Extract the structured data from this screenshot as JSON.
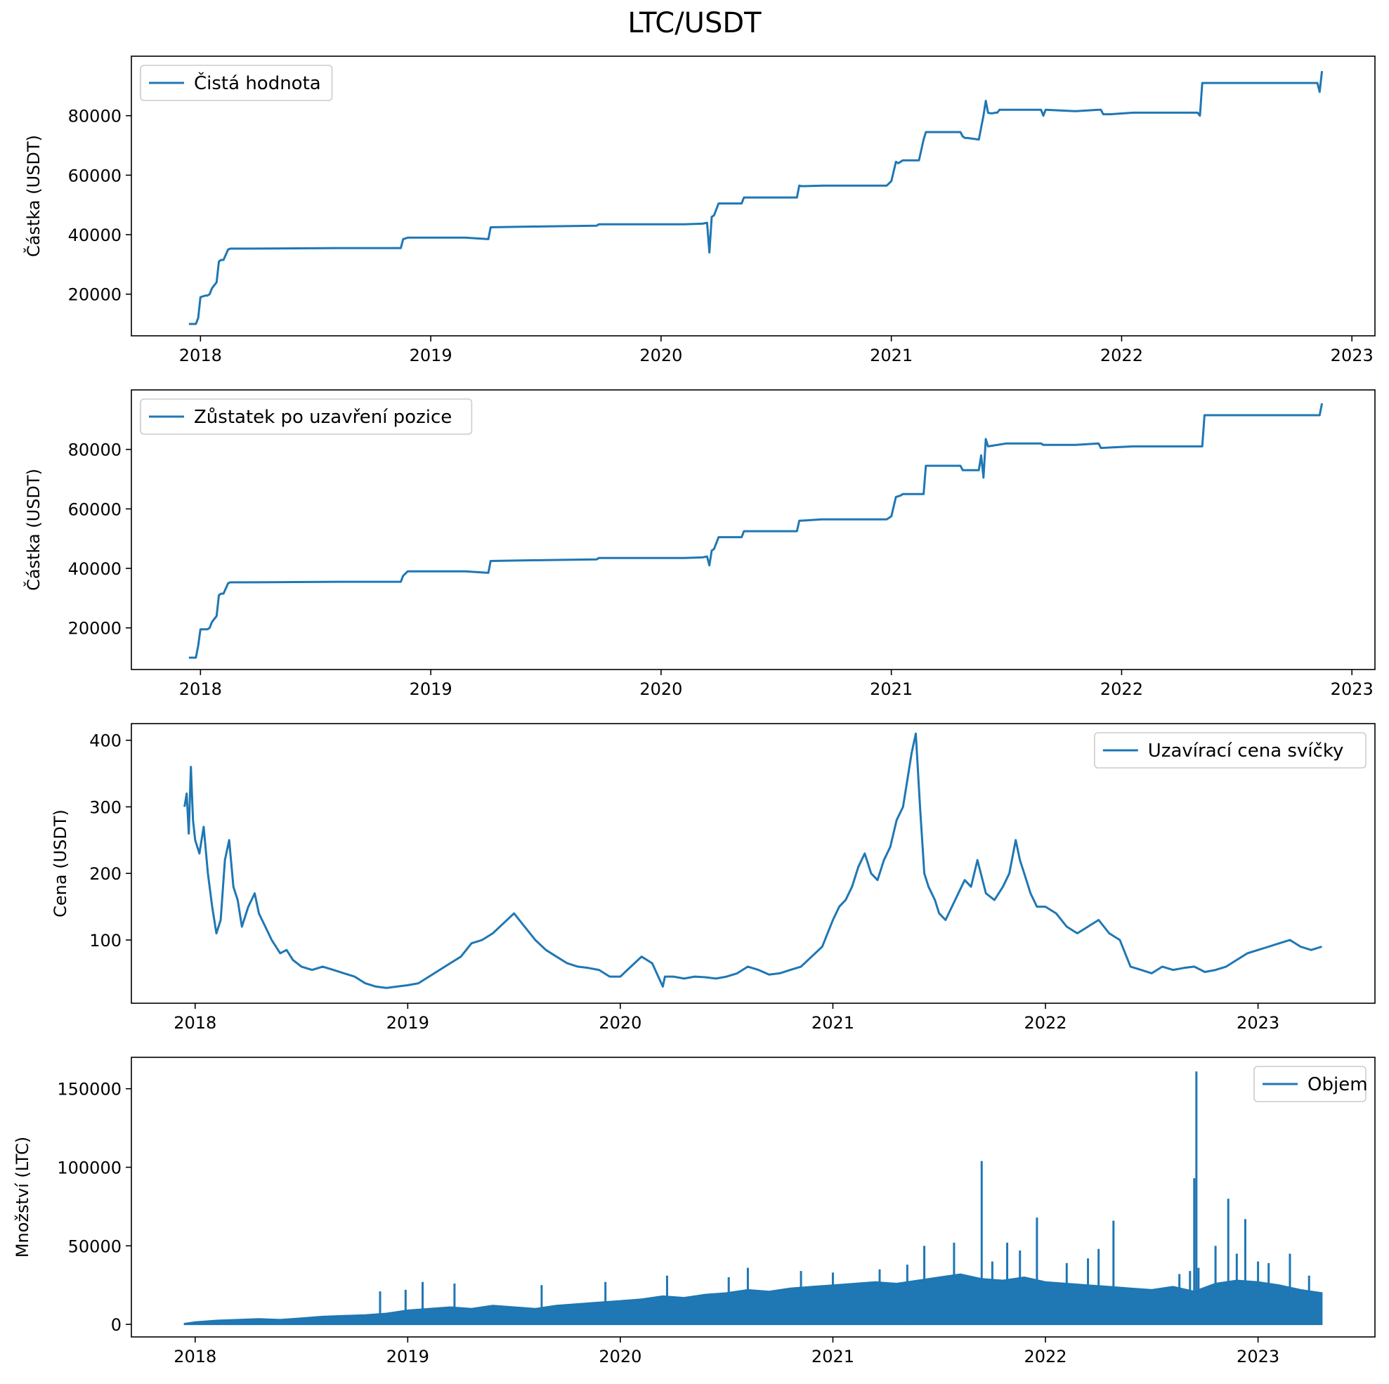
{
  "figure": {
    "title": "LTC/USDT"
  },
  "colors": {
    "series": "#1f77b4"
  },
  "chart_data": [
    {
      "type": "line",
      "name": "net-value",
      "ylabel": "Částka (USDT)",
      "legend": {
        "label": "Čistá hodnota",
        "placement": "top-left"
      },
      "xlim": [
        2017.7,
        2023.1
      ],
      "ylim": [
        6000,
        100000
      ],
      "xticks": [
        2018,
        2019,
        2020,
        2021,
        2022,
        2023
      ],
      "yticks": [
        20000,
        40000,
        60000,
        80000
      ],
      "x": [
        2017.95,
        2017.98,
        2017.99,
        2018.0,
        2018.02,
        2018.03,
        2018.04,
        2018.05,
        2018.07,
        2018.08,
        2018.09,
        2018.1,
        2018.12,
        2018.13,
        2018.2,
        2018.6,
        2018.87,
        2018.88,
        2018.9,
        2019.15,
        2019.25,
        2019.26,
        2019.5,
        2019.72,
        2019.73,
        2020.1,
        2020.18,
        2020.2,
        2020.21,
        2020.22,
        2020.23,
        2020.25,
        2020.27,
        2020.35,
        2020.36,
        2020.4,
        2020.59,
        2020.6,
        2020.61,
        2020.7,
        2020.9,
        2020.98,
        2021.0,
        2021.02,
        2021.03,
        2021.04,
        2021.05,
        2021.12,
        2021.14,
        2021.15,
        2021.17,
        2021.3,
        2021.31,
        2021.32,
        2021.33,
        2021.38,
        2021.4,
        2021.41,
        2021.42,
        2021.43,
        2021.44,
        2021.45,
        2021.46,
        2021.47,
        2021.5,
        2021.65,
        2021.66,
        2021.67,
        2021.8,
        2021.9,
        2021.91,
        2021.92,
        2021.95,
        2022.05,
        2022.33,
        2022.34,
        2022.35,
        2022.36,
        2022.8,
        2022.85,
        2022.86,
        2022.87
      ],
      "y": [
        10000,
        10000,
        12000,
        19000,
        19500,
        19500,
        20000,
        22000,
        24000,
        31000,
        31500,
        31500,
        35000,
        35300,
        35300,
        35500,
        35500,
        38500,
        39000,
        39000,
        38500,
        42500,
        42800,
        43000,
        43500,
        43500,
        43700,
        44000,
        34000,
        46000,
        46500,
        50500,
        50500,
        50500,
        52500,
        52500,
        52500,
        56500,
        56300,
        56500,
        56500,
        56500,
        58000,
        64500,
        64000,
        64500,
        65000,
        65000,
        72000,
        74500,
        74500,
        74500,
        73000,
        72500,
        72500,
        72000,
        80000,
        85000,
        81000,
        80800,
        80800,
        81000,
        81000,
        82000,
        82000,
        82000,
        80000,
        82000,
        81500,
        82000,
        82000,
        80500,
        80500,
        81000,
        81000,
        80000,
        91000,
        91000,
        91000,
        91000,
        88000,
        95000
      ]
    },
    {
      "type": "line",
      "name": "closed-balance",
      "ylabel": "Částka (USDT)",
      "legend": {
        "label": "Zůstatek po uzavření pozice",
        "placement": "top-left"
      },
      "xlim": [
        2017.7,
        2023.1
      ],
      "ylim": [
        6000,
        100000
      ],
      "xticks": [
        2018,
        2019,
        2020,
        2021,
        2022,
        2023
      ],
      "yticks": [
        20000,
        40000,
        60000,
        80000
      ],
      "x": [
        2017.95,
        2017.98,
        2017.99,
        2018.0,
        2018.02,
        2018.03,
        2018.04,
        2018.05,
        2018.07,
        2018.08,
        2018.09,
        2018.1,
        2018.12,
        2018.13,
        2018.2,
        2018.6,
        2018.87,
        2018.88,
        2018.9,
        2019.15,
        2019.25,
        2019.26,
        2019.5,
        2019.72,
        2019.73,
        2020.1,
        2020.18,
        2020.2,
        2020.21,
        2020.22,
        2020.23,
        2020.25,
        2020.27,
        2020.35,
        2020.36,
        2020.4,
        2020.59,
        2020.6,
        2020.7,
        2020.98,
        2021.0,
        2021.02,
        2021.04,
        2021.05,
        2021.14,
        2021.15,
        2021.3,
        2021.31,
        2021.38,
        2021.39,
        2021.4,
        2021.41,
        2021.42,
        2021.5,
        2021.65,
        2021.66,
        2021.8,
        2021.9,
        2021.91,
        2022.05,
        2022.35,
        2022.36,
        2022.86,
        2022.87
      ],
      "y": [
        10000,
        10000,
        14000,
        19500,
        19500,
        19500,
        20000,
        22000,
        24000,
        31000,
        31500,
        31500,
        35000,
        35300,
        35300,
        35500,
        35500,
        37500,
        39000,
        39000,
        38500,
        42500,
        42800,
        43000,
        43500,
        43500,
        43700,
        44000,
        41000,
        46000,
        46500,
        50500,
        50500,
        50500,
        52500,
        52500,
        52500,
        56000,
        56500,
        56500,
        57500,
        64000,
        64500,
        65000,
        65000,
        74500,
        74500,
        73000,
        73000,
        78000,
        70500,
        83500,
        81000,
        82000,
        82000,
        81500,
        81500,
        82000,
        80500,
        81000,
        81000,
        91500,
        91500,
        95500
      ]
    },
    {
      "type": "line",
      "name": "close-price",
      "ylabel": "Cena (USDT)",
      "legend": {
        "label": "Uzavírací cena svíčky",
        "placement": "top-right"
      },
      "xlim": [
        2017.7,
        2023.55
      ],
      "ylim": [
        5,
        425
      ],
      "xticks": [
        2018,
        2019,
        2020,
        2021,
        2022,
        2023
      ],
      "yticks": [
        100,
        200,
        300,
        400
      ],
      "x": [
        2017.95,
        2017.96,
        2017.97,
        2017.98,
        2017.99,
        2018.0,
        2018.02,
        2018.04,
        2018.06,
        2018.08,
        2018.1,
        2018.12,
        2018.14,
        2018.16,
        2018.18,
        2018.2,
        2018.22,
        2018.25,
        2018.28,
        2018.3,
        2018.33,
        2018.36,
        2018.4,
        2018.43,
        2018.46,
        2018.5,
        2018.55,
        2018.6,
        2018.65,
        2018.7,
        2018.75,
        2018.8,
        2018.85,
        2018.9,
        2018.95,
        2019.0,
        2019.05,
        2019.1,
        2019.15,
        2019.2,
        2019.25,
        2019.3,
        2019.35,
        2019.4,
        2019.45,
        2019.5,
        2019.55,
        2019.6,
        2019.65,
        2019.7,
        2019.75,
        2019.8,
        2019.85,
        2019.9,
        2019.95,
        2020.0,
        2020.05,
        2020.1,
        2020.15,
        2020.2,
        2020.21,
        2020.25,
        2020.3,
        2020.35,
        2020.4,
        2020.45,
        2020.5,
        2020.55,
        2020.6,
        2020.65,
        2020.7,
        2020.75,
        2020.8,
        2020.85,
        2020.9,
        2020.95,
        2021.0,
        2021.03,
        2021.06,
        2021.09,
        2021.12,
        2021.15,
        2021.18,
        2021.21,
        2021.24,
        2021.27,
        2021.3,
        2021.33,
        2021.35,
        2021.37,
        2021.39,
        2021.41,
        2021.43,
        2021.45,
        2021.48,
        2021.5,
        2021.53,
        2021.56,
        2021.59,
        2021.62,
        2021.65,
        2021.68,
        2021.72,
        2021.76,
        2021.8,
        2021.83,
        2021.86,
        2021.88,
        2021.9,
        2021.93,
        2021.96,
        2022.0,
        2022.05,
        2022.1,
        2022.15,
        2022.2,
        2022.25,
        2022.3,
        2022.35,
        2022.4,
        2022.45,
        2022.5,
        2022.55,
        2022.6,
        2022.65,
        2022.7,
        2022.75,
        2022.8,
        2022.85,
        2022.9,
        2022.95,
        2023.0,
        2023.05,
        2023.1,
        2023.15,
        2023.2,
        2023.25,
        2023.3
      ],
      "y": [
        300,
        320,
        260,
        360,
        280,
        250,
        230,
        270,
        200,
        150,
        110,
        130,
        220,
        250,
        180,
        160,
        120,
        150,
        170,
        140,
        120,
        100,
        80,
        85,
        70,
        60,
        55,
        60,
        55,
        50,
        45,
        35,
        30,
        28,
        30,
        32,
        35,
        45,
        55,
        65,
        75,
        95,
        100,
        110,
        125,
        140,
        120,
        100,
        85,
        75,
        65,
        60,
        58,
        55,
        45,
        45,
        60,
        75,
        65,
        30,
        45,
        45,
        42,
        45,
        44,
        42,
        45,
        50,
        60,
        55,
        48,
        50,
        55,
        60,
        75,
        90,
        130,
        150,
        160,
        180,
        210,
        230,
        200,
        190,
        220,
        240,
        280,
        300,
        340,
        380,
        410,
        300,
        200,
        180,
        160,
        140,
        130,
        150,
        170,
        190,
        180,
        220,
        170,
        160,
        180,
        200,
        250,
        220,
        200,
        170,
        150,
        150,
        140,
        120,
        110,
        120,
        130,
        110,
        100,
        60,
        55,
        50,
        60,
        55,
        58,
        60,
        52,
        55,
        60,
        70,
        80,
        85,
        90,
        95,
        100,
        90,
        85,
        90
      ]
    },
    {
      "type": "line",
      "name": "volume",
      "ylabel": "Množství (LTC)",
      "legend": {
        "label": "Objem",
        "placement": "top-right"
      },
      "xlim": [
        2017.7,
        2023.55
      ],
      "ylim": [
        -8000,
        170000
      ],
      "xticks": [
        2018,
        2019,
        2020,
        2021,
        2022,
        2023
      ],
      "yticks": [
        0,
        50000,
        100000,
        150000
      ],
      "envelope_x": [
        2017.95,
        2018.0,
        2018.1,
        2018.2,
        2018.3,
        2018.4,
        2018.5,
        2018.6,
        2018.7,
        2018.8,
        2018.9,
        2019.0,
        2019.1,
        2019.2,
        2019.3,
        2019.4,
        2019.5,
        2019.6,
        2019.7,
        2019.8,
        2019.9,
        2020.0,
        2020.1,
        2020.2,
        2020.3,
        2020.4,
        2020.5,
        2020.6,
        2020.7,
        2020.8,
        2020.9,
        2021.0,
        2021.1,
        2021.2,
        2021.3,
        2021.4,
        2021.5,
        2021.6,
        2021.7,
        2021.8,
        2021.9,
        2022.0,
        2022.1,
        2022.2,
        2022.3,
        2022.4,
        2022.5,
        2022.6,
        2022.7,
        2022.8,
        2022.9,
        2023.0,
        2023.1,
        2023.2,
        2023.3
      ],
      "envelope_y": [
        500,
        1500,
        2500,
        3000,
        3500,
        3000,
        4000,
        5000,
        5500,
        6000,
        7000,
        9000,
        10000,
        11000,
        10000,
        12000,
        11000,
        10000,
        12000,
        13000,
        14000,
        15000,
        16000,
        18000,
        17000,
        19000,
        20000,
        22000,
        21000,
        23000,
        24000,
        25000,
        26000,
        27000,
        26000,
        28000,
        30000,
        32000,
        29000,
        28000,
        30000,
        27000,
        26000,
        25000,
        24000,
        23000,
        22000,
        24000,
        21000,
        26000,
        28000,
        27000,
        25000,
        22000,
        20000
      ],
      "spikes_x": [
        2018.87,
        2018.99,
        2019.07,
        2019.22,
        2019.63,
        2019.93,
        2020.22,
        2020.51,
        2020.6,
        2020.85,
        2021.0,
        2021.22,
        2021.35,
        2021.43,
        2021.57,
        2021.7,
        2021.75,
        2021.82,
        2021.88,
        2021.96,
        2022.1,
        2022.2,
        2022.25,
        2022.32,
        2022.63,
        2022.68,
        2022.7,
        2022.71,
        2022.72,
        2022.8,
        2022.86,
        2022.9,
        2022.94,
        2023.0,
        2023.05,
        2023.15,
        2023.24
      ],
      "spikes_y": [
        21000,
        22000,
        27000,
        26000,
        25000,
        27000,
        31000,
        30000,
        36000,
        34000,
        33000,
        35000,
        38000,
        50000,
        52000,
        104000,
        40000,
        52000,
        47000,
        68000,
        39000,
        42000,
        48000,
        66000,
        32000,
        34000,
        93000,
        161000,
        36000,
        50000,
        80000,
        45000,
        67000,
        40000,
        39000,
        45000,
        31000
      ]
    }
  ]
}
